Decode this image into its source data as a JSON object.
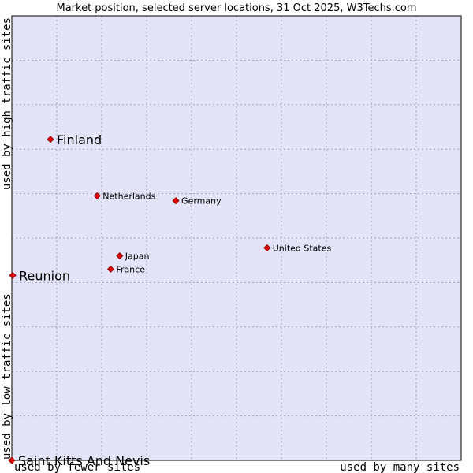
{
  "chart_data": {
    "type": "scatter",
    "title": "Market position, selected server locations, 31 Oct 2025, W3Techs.com",
    "xlabel_left": "used by fewer sites",
    "xlabel_right": "used by many sites",
    "ylabel_bottom": "used by low traffic sites",
    "ylabel_top": "used by high traffic sites",
    "xlim": [
      0,
      100
    ],
    "ylim": [
      0,
      100
    ],
    "grid": true,
    "colors": {
      "plot_background": "#e4e4f8",
      "point": "#e00000",
      "point_edge": "#800000",
      "grid": "#a0a0c0",
      "border": "#000000"
    },
    "points": [
      {
        "label": "Finland",
        "x": 8.6,
        "y": 72.2,
        "size": "large"
      },
      {
        "label": "Netherlands",
        "x": 19.0,
        "y": 59.5,
        "size": "small"
      },
      {
        "label": "Germany",
        "x": 36.5,
        "y": 58.4,
        "size": "small"
      },
      {
        "label": "United States",
        "x": 56.8,
        "y": 47.8,
        "size": "small"
      },
      {
        "label": "Japan",
        "x": 24.0,
        "y": 46.0,
        "size": "small"
      },
      {
        "label": "France",
        "x": 22.0,
        "y": 43.0,
        "size": "small"
      },
      {
        "label": "Reunion",
        "x": 0.2,
        "y": 41.6,
        "size": "large"
      },
      {
        "label": "Saint Kitts And Nevis",
        "x": 0,
        "y": 0,
        "size": "large"
      }
    ]
  }
}
